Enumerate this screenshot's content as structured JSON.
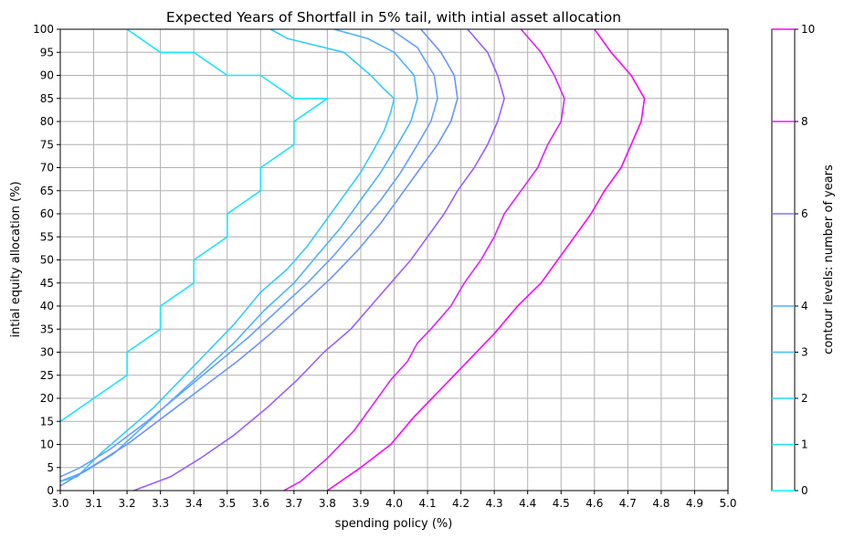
{
  "chart_data": {
    "type": "line",
    "title": "Expected Years of Shortfall in 5% tail, with intial asset allocation",
    "xlabel": "spending policy (%)",
    "ylabel": "intial equity allocation (%)",
    "xlim": [
      3.0,
      5.0
    ],
    "ylim": [
      0,
      100
    ],
    "xticks": [
      "3.0",
      "3.1",
      "3.2",
      "3.3",
      "3.4",
      "3.5",
      "3.6",
      "3.7",
      "3.8",
      "3.9",
      "4.0",
      "4.1",
      "4.2",
      "4.3",
      "4.4",
      "4.5",
      "4.6",
      "4.7",
      "4.8",
      "4.9",
      "5.0"
    ],
    "yticks": [
      "0",
      "5",
      "10",
      "15",
      "20",
      "25",
      "30",
      "35",
      "40",
      "45",
      "50",
      "55",
      "60",
      "65",
      "70",
      "75",
      "80",
      "85",
      "90",
      "95",
      "100"
    ],
    "grid": true,
    "grid_color": "#b0b0b0",
    "colorbar": {
      "label": "contour levels: number of years",
      "ticks": [
        "0",
        "1",
        "2",
        "3",
        "4",
        "6",
        "8",
        "10"
      ],
      "tick_colors": [
        "#00ffff",
        "#19e6ff",
        "#26d9ff",
        "#40bfff",
        "#4db2ff",
        "#8073ff",
        "#e619ff",
        "#ff00ff"
      ]
    },
    "series": [
      {
        "level": 1,
        "color": "#1ae5ff",
        "points": [
          [
            3.2,
            100
          ],
          [
            3.3,
            95
          ],
          [
            3.4,
            95
          ],
          [
            3.5,
            90
          ],
          [
            3.6,
            90
          ],
          [
            3.7,
            85
          ],
          [
            3.8,
            85
          ],
          [
            3.7,
            80
          ],
          [
            3.7,
            75
          ],
          [
            3.6,
            70
          ],
          [
            3.6,
            65
          ],
          [
            3.5,
            60
          ],
          [
            3.5,
            55
          ],
          [
            3.4,
            50
          ],
          [
            3.4,
            45
          ],
          [
            3.3,
            40
          ],
          [
            3.3,
            35
          ],
          [
            3.2,
            30
          ],
          [
            3.2,
            25
          ],
          [
            3.1,
            20
          ],
          [
            3.0,
            15
          ]
        ]
      },
      {
        "level": 2,
        "color": "#33ccff",
        "points": [
          [
            3.63,
            100
          ],
          [
            3.68,
            98
          ],
          [
            3.85,
            95
          ],
          [
            3.93,
            90
          ],
          [
            3.97,
            87
          ],
          [
            4.0,
            85
          ],
          [
            3.99,
            82
          ],
          [
            3.97,
            78
          ],
          [
            3.94,
            74
          ],
          [
            3.9,
            69
          ],
          [
            3.85,
            64
          ],
          [
            3.8,
            59
          ],
          [
            3.74,
            53
          ],
          [
            3.68,
            48
          ],
          [
            3.6,
            43
          ],
          [
            3.52,
            36
          ],
          [
            3.44,
            30
          ],
          [
            3.36,
            24
          ],
          [
            3.28,
            18
          ],
          [
            3.2,
            13
          ],
          [
            3.12,
            8
          ],
          [
            3.05,
            3
          ],
          [
            3.0,
            2
          ]
        ]
      },
      {
        "level": 3,
        "color": "#4db3ff",
        "points": [
          [
            3.82,
            100
          ],
          [
            3.92,
            98
          ],
          [
            4.0,
            95
          ],
          [
            4.06,
            90
          ],
          [
            4.07,
            85
          ],
          [
            4.05,
            80
          ],
          [
            4.01,
            75
          ],
          [
            3.96,
            69
          ],
          [
            3.9,
            63
          ],
          [
            3.84,
            57
          ],
          [
            3.77,
            51
          ],
          [
            3.7,
            45
          ],
          [
            3.61,
            39
          ],
          [
            3.52,
            32
          ],
          [
            3.43,
            26
          ],
          [
            3.34,
            20
          ],
          [
            3.25,
            14
          ],
          [
            3.16,
            8
          ],
          [
            3.07,
            4
          ],
          [
            3.0,
            2
          ]
        ]
      },
      {
        "level": 4,
        "color": "#66a0ff",
        "points": [
          [
            3.99,
            100
          ],
          [
            4.07,
            96
          ],
          [
            4.12,
            90
          ],
          [
            4.13,
            85
          ],
          [
            4.11,
            80
          ],
          [
            4.07,
            75
          ],
          [
            4.02,
            69
          ],
          [
            3.96,
            63
          ],
          [
            3.89,
            57
          ],
          [
            3.82,
            51
          ],
          [
            3.74,
            45
          ],
          [
            3.65,
            39
          ],
          [
            3.56,
            33
          ],
          [
            3.46,
            27
          ],
          [
            3.36,
            21
          ],
          [
            3.26,
            15
          ],
          [
            3.15,
            9
          ],
          [
            3.06,
            5
          ],
          [
            3.0,
            3
          ]
        ]
      },
      {
        "level": 5,
        "color": "#6d92ff",
        "points": [
          [
            4.08,
            100
          ],
          [
            4.14,
            95
          ],
          [
            4.18,
            90
          ],
          [
            4.19,
            85
          ],
          [
            4.17,
            80
          ],
          [
            4.13,
            75
          ],
          [
            4.08,
            70
          ],
          [
            4.02,
            64
          ],
          [
            3.96,
            58
          ],
          [
            3.89,
            52
          ],
          [
            3.81,
            46
          ],
          [
            3.72,
            40
          ],
          [
            3.63,
            34
          ],
          [
            3.53,
            28
          ],
          [
            3.42,
            22
          ],
          [
            3.31,
            16
          ],
          [
            3.2,
            10
          ],
          [
            3.09,
            5
          ],
          [
            3.0,
            1
          ]
        ]
      },
      {
        "level": 6,
        "color": "#9a5fff",
        "points": [
          [
            4.22,
            100
          ],
          [
            4.28,
            95
          ],
          [
            4.31,
            90
          ],
          [
            4.33,
            85
          ],
          [
            4.31,
            80
          ],
          [
            4.28,
            75
          ],
          [
            4.24,
            70
          ],
          [
            4.19,
            65
          ],
          [
            4.15,
            60
          ],
          [
            4.1,
            55
          ],
          [
            4.05,
            50
          ],
          [
            3.99,
            45
          ],
          [
            3.93,
            40
          ],
          [
            3.87,
            35
          ],
          [
            3.79,
            30
          ],
          [
            3.71,
            24
          ],
          [
            3.62,
            18
          ],
          [
            3.52,
            12
          ],
          [
            3.42,
            7
          ],
          [
            3.33,
            3
          ],
          [
            3.22,
            0
          ]
        ]
      },
      {
        "level": 8,
        "color": "#dd22ff",
        "points": [
          [
            4.38,
            100
          ],
          [
            4.44,
            95
          ],
          [
            4.48,
            90
          ],
          [
            4.51,
            85
          ],
          [
            4.5,
            80
          ],
          [
            4.46,
            75
          ],
          [
            4.43,
            70
          ],
          [
            4.38,
            65
          ],
          [
            4.33,
            60
          ],
          [
            4.3,
            55
          ],
          [
            4.26,
            50
          ],
          [
            4.21,
            45
          ],
          [
            4.17,
            40
          ],
          [
            4.11,
            35
          ],
          [
            4.07,
            32
          ],
          [
            4.04,
            28
          ],
          [
            3.99,
            24
          ],
          [
            3.94,
            19
          ],
          [
            3.88,
            13
          ],
          [
            3.8,
            7
          ],
          [
            3.72,
            2
          ],
          [
            3.67,
            0
          ]
        ]
      },
      {
        "level": 10,
        "color": "#ff00ff",
        "points": [
          [
            4.6,
            100
          ],
          [
            4.65,
            95
          ],
          [
            4.71,
            90
          ],
          [
            4.75,
            85
          ],
          [
            4.74,
            80
          ],
          [
            4.71,
            75
          ],
          [
            4.68,
            70
          ],
          [
            4.63,
            65
          ],
          [
            4.59,
            60
          ],
          [
            4.54,
            55
          ],
          [
            4.49,
            50
          ],
          [
            4.44,
            45
          ],
          [
            4.37,
            40
          ],
          [
            4.3,
            34
          ],
          [
            4.22,
            28
          ],
          [
            4.14,
            22
          ],
          [
            4.06,
            16
          ],
          [
            3.99,
            10
          ],
          [
            3.9,
            5
          ],
          [
            3.8,
            0
          ]
        ]
      }
    ]
  }
}
